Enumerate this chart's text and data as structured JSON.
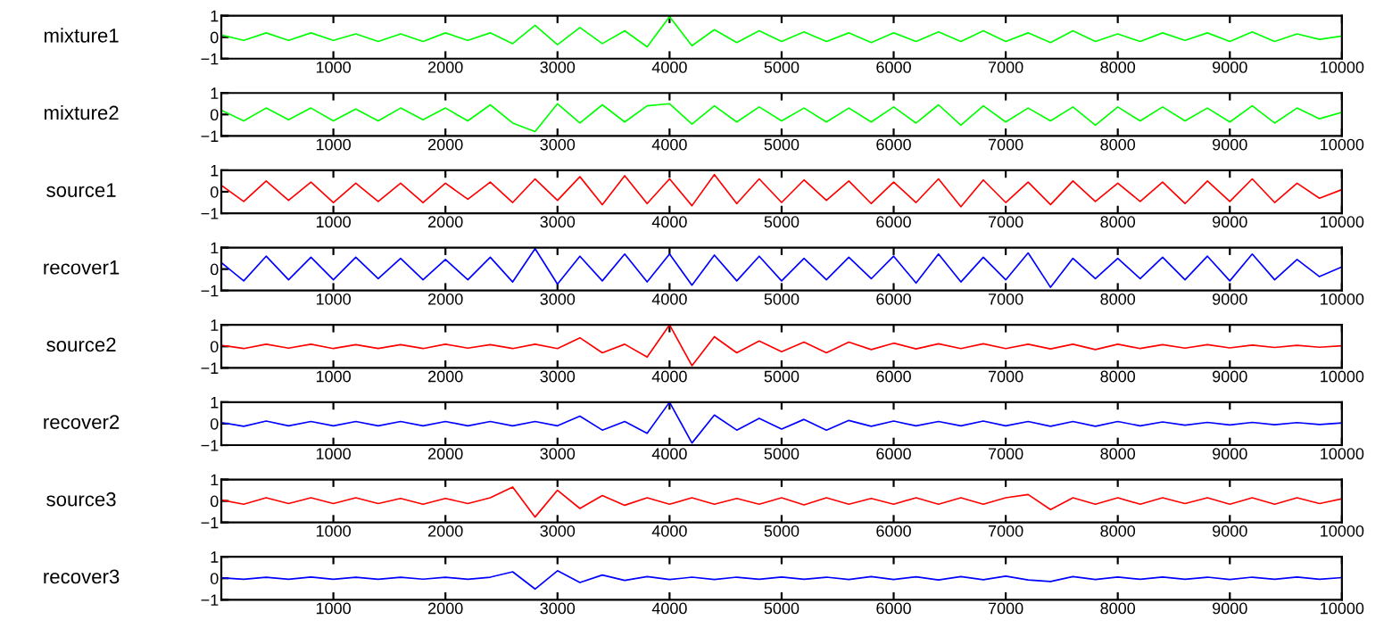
{
  "chart_data": [
    {
      "type": "line",
      "ylabel": "mixture1",
      "xlim": [
        0,
        10000
      ],
      "ylim": [
        -1,
        1
      ],
      "xticks": [
        1000,
        2000,
        3000,
        4000,
        5000,
        6000,
        7000,
        8000,
        9000,
        10000
      ],
      "yticks": [
        -1,
        0,
        1
      ],
      "x": [
        0,
        200,
        400,
        600,
        800,
        1000,
        1200,
        1400,
        1600,
        1800,
        2000,
        2200,
        2400,
        2600,
        2800,
        3000,
        3200,
        3400,
        3600,
        3800,
        4000,
        4200,
        4400,
        4600,
        4800,
        5000,
        5200,
        5400,
        5600,
        5800,
        6000,
        6200,
        6400,
        6600,
        6800,
        7000,
        7200,
        7400,
        7600,
        7800,
        8000,
        8200,
        8400,
        8600,
        8800,
        9000,
        9200,
        9400,
        9600,
        9800,
        10000
      ],
      "series": [
        {
          "color": "#00ff00",
          "values": [
            0.1,
            -0.15,
            0.2,
            -0.15,
            0.2,
            -0.15,
            0.15,
            -0.2,
            0.15,
            -0.2,
            0.2,
            -0.15,
            0.2,
            -0.3,
            0.55,
            -0.35,
            0.45,
            -0.3,
            0.3,
            -0.45,
            0.95,
            -0.4,
            0.35,
            -0.25,
            0.3,
            -0.2,
            0.25,
            -0.2,
            0.2,
            -0.25,
            0.2,
            -0.2,
            0.25,
            -0.2,
            0.3,
            -0.2,
            0.2,
            -0.25,
            0.3,
            -0.2,
            0.15,
            -0.2,
            0.2,
            -0.15,
            0.2,
            -0.2,
            0.25,
            -0.2,
            0.15,
            -0.1,
            0.05
          ]
        }
      ]
    },
    {
      "type": "line",
      "ylabel": "mixture2",
      "xlim": [
        0,
        10000
      ],
      "ylim": [
        -1,
        1
      ],
      "xticks": [
        1000,
        2000,
        3000,
        4000,
        5000,
        6000,
        7000,
        8000,
        9000,
        10000
      ],
      "yticks": [
        -1,
        0,
        1
      ],
      "x": [
        0,
        200,
        400,
        600,
        800,
        1000,
        1200,
        1400,
        1600,
        1800,
        2000,
        2200,
        2400,
        2600,
        2800,
        3000,
        3200,
        3400,
        3600,
        3800,
        4000,
        4200,
        4400,
        4600,
        4800,
        5000,
        5200,
        5400,
        5600,
        5800,
        6000,
        6200,
        6400,
        6600,
        6800,
        7000,
        7200,
        7400,
        7600,
        7800,
        8000,
        8200,
        8400,
        8600,
        8800,
        9000,
        9200,
        9400,
        9600,
        9800,
        10000
      ],
      "series": [
        {
          "color": "#00ff00",
          "values": [
            0.2,
            -0.3,
            0.3,
            -0.25,
            0.3,
            -0.3,
            0.25,
            -0.3,
            0.3,
            -0.25,
            0.3,
            -0.3,
            0.45,
            -0.4,
            -0.8,
            0.5,
            -0.4,
            0.45,
            -0.35,
            0.4,
            0.5,
            -0.45,
            0.4,
            -0.35,
            0.35,
            -0.3,
            0.3,
            -0.35,
            0.3,
            -0.35,
            0.35,
            -0.4,
            0.45,
            -0.5,
            0.4,
            -0.35,
            0.3,
            -0.3,
            0.35,
            -0.5,
            0.35,
            -0.3,
            0.35,
            -0.3,
            0.3,
            -0.35,
            0.4,
            -0.4,
            0.3,
            -0.2,
            0.1
          ]
        }
      ]
    },
    {
      "type": "line",
      "ylabel": "source1",
      "xlim": [
        0,
        10000
      ],
      "ylim": [
        -1,
        1
      ],
      "xticks": [
        1000,
        2000,
        3000,
        4000,
        5000,
        6000,
        7000,
        8000,
        9000,
        10000
      ],
      "yticks": [
        -1,
        0,
        1
      ],
      "x": [
        0,
        200,
        400,
        600,
        800,
        1000,
        1200,
        1400,
        1600,
        1800,
        2000,
        2200,
        2400,
        2600,
        2800,
        3000,
        3200,
        3400,
        3600,
        3800,
        4000,
        4200,
        4400,
        4600,
        4800,
        5000,
        5200,
        5400,
        5600,
        5800,
        6000,
        6200,
        6400,
        6600,
        6800,
        7000,
        7200,
        7400,
        7600,
        7800,
        8000,
        8200,
        8400,
        8600,
        8800,
        9000,
        9200,
        9400,
        9600,
        9800,
        10000
      ],
      "series": [
        {
          "color": "#ff0000",
          "values": [
            0.3,
            -0.45,
            0.5,
            -0.4,
            0.45,
            -0.5,
            0.4,
            -0.45,
            0.4,
            -0.5,
            0.4,
            -0.35,
            0.45,
            -0.5,
            0.6,
            -0.4,
            0.7,
            -0.6,
            0.75,
            -0.55,
            0.6,
            -0.65,
            0.8,
            -0.55,
            0.6,
            -0.5,
            0.55,
            -0.4,
            0.5,
            -0.55,
            0.45,
            -0.5,
            0.6,
            -0.7,
            0.55,
            -0.5,
            0.45,
            -0.6,
            0.5,
            -0.45,
            0.4,
            -0.45,
            0.45,
            -0.55,
            0.5,
            -0.45,
            0.6,
            -0.5,
            0.4,
            -0.3,
            0.1
          ]
        }
      ]
    },
    {
      "type": "line",
      "ylabel": "recover1",
      "xlim": [
        0,
        10000
      ],
      "ylim": [
        -1,
        1
      ],
      "xticks": [
        1000,
        2000,
        3000,
        4000,
        5000,
        6000,
        7000,
        8000,
        9000,
        10000
      ],
      "yticks": [
        -1,
        0,
        1
      ],
      "x": [
        0,
        200,
        400,
        600,
        800,
        1000,
        1200,
        1400,
        1600,
        1800,
        2000,
        2200,
        2400,
        2600,
        2800,
        3000,
        3200,
        3400,
        3600,
        3800,
        4000,
        4200,
        4400,
        4600,
        4800,
        5000,
        5200,
        5400,
        5600,
        5800,
        6000,
        6200,
        6400,
        6600,
        6800,
        7000,
        7200,
        7400,
        7600,
        7800,
        8000,
        8200,
        8400,
        8600,
        8800,
        9000,
        9200,
        9400,
        9600,
        9800,
        10000
      ],
      "series": [
        {
          "color": "#0000ff",
          "values": [
            0.3,
            -0.55,
            0.6,
            -0.5,
            0.55,
            -0.5,
            0.55,
            -0.45,
            0.5,
            -0.5,
            0.45,
            -0.5,
            0.55,
            -0.6,
            0.95,
            -0.7,
            0.6,
            -0.55,
            0.7,
            -0.6,
            0.7,
            -0.75,
            0.65,
            -0.55,
            0.6,
            -0.55,
            0.5,
            -0.5,
            0.55,
            -0.45,
            0.6,
            -0.65,
            0.7,
            -0.6,
            0.55,
            -0.5,
            0.75,
            -0.85,
            0.5,
            -0.45,
            0.5,
            -0.45,
            0.55,
            -0.5,
            0.6,
            -0.55,
            0.7,
            -0.5,
            0.45,
            -0.35,
            0.1
          ]
        }
      ]
    },
    {
      "type": "line",
      "ylabel": "source2",
      "xlim": [
        0,
        10000
      ],
      "ylim": [
        -1,
        1
      ],
      "xticks": [
        1000,
        2000,
        3000,
        4000,
        5000,
        6000,
        7000,
        8000,
        9000,
        10000
      ],
      "yticks": [
        -1,
        0,
        1
      ],
      "x": [
        0,
        200,
        400,
        600,
        800,
        1000,
        1200,
        1400,
        1600,
        1800,
        2000,
        2200,
        2400,
        2600,
        2800,
        3000,
        3200,
        3400,
        3600,
        3800,
        4000,
        4200,
        4400,
        4600,
        4800,
        5000,
        5200,
        5400,
        5600,
        5800,
        6000,
        6200,
        6400,
        6600,
        6800,
        7000,
        7200,
        7400,
        7600,
        7800,
        8000,
        8200,
        8400,
        8600,
        8800,
        9000,
        9200,
        9400,
        9600,
        9800,
        10000
      ],
      "series": [
        {
          "color": "#ff0000",
          "values": [
            0.05,
            -0.1,
            0.1,
            -0.08,
            0.1,
            -0.1,
            0.08,
            -0.1,
            0.08,
            -0.1,
            0.1,
            -0.08,
            0.08,
            -0.1,
            0.1,
            -0.1,
            0.4,
            -0.3,
            0.1,
            -0.5,
            1.0,
            -0.9,
            0.45,
            -0.3,
            0.25,
            -0.25,
            0.2,
            -0.3,
            0.2,
            -0.15,
            0.15,
            -0.12,
            0.12,
            -0.1,
            0.12,
            -0.1,
            0.1,
            -0.12,
            0.1,
            -0.15,
            0.1,
            -0.1,
            0.08,
            -0.08,
            0.08,
            -0.07,
            0.06,
            -0.05,
            0.05,
            -0.04,
            0.03
          ]
        }
      ]
    },
    {
      "type": "line",
      "ylabel": "recover2",
      "xlim": [
        0,
        10000
      ],
      "ylim": [
        -1,
        1
      ],
      "xticks": [
        1000,
        2000,
        3000,
        4000,
        5000,
        6000,
        7000,
        8000,
        9000,
        10000
      ],
      "yticks": [
        -1,
        0,
        1
      ],
      "x": [
        0,
        200,
        400,
        600,
        800,
        1000,
        1200,
        1400,
        1600,
        1800,
        2000,
        2200,
        2400,
        2600,
        2800,
        3000,
        3200,
        3400,
        3600,
        3800,
        4000,
        4200,
        4400,
        4600,
        4800,
        5000,
        5200,
        5400,
        5600,
        5800,
        6000,
        6200,
        6400,
        6600,
        6800,
        7000,
        7200,
        7400,
        7600,
        7800,
        8000,
        8200,
        8400,
        8600,
        8800,
        9000,
        9200,
        9400,
        9600,
        9800,
        10000
      ],
      "series": [
        {
          "color": "#0000ff",
          "values": [
            0.05,
            -0.12,
            0.12,
            -0.1,
            0.1,
            -0.1,
            0.1,
            -0.1,
            0.1,
            -0.1,
            0.1,
            -0.1,
            0.1,
            -0.1,
            0.1,
            -0.1,
            0.35,
            -0.3,
            0.1,
            -0.45,
            1.0,
            -0.9,
            0.4,
            -0.3,
            0.25,
            -0.25,
            0.2,
            -0.3,
            0.15,
            -0.12,
            0.12,
            -0.1,
            0.1,
            -0.1,
            0.12,
            -0.1,
            0.1,
            -0.12,
            0.1,
            -0.12,
            0.1,
            -0.1,
            0.08,
            -0.07,
            0.06,
            -0.06,
            0.06,
            -0.05,
            0.05,
            -0.04,
            0.03
          ]
        }
      ]
    },
    {
      "type": "line",
      "ylabel": "source3",
      "xlim": [
        0,
        10000
      ],
      "ylim": [
        -1,
        1
      ],
      "xticks": [
        1000,
        2000,
        3000,
        4000,
        5000,
        6000,
        7000,
        8000,
        9000,
        10000
      ],
      "yticks": [
        -1,
        0,
        1
      ],
      "x": [
        0,
        200,
        400,
        600,
        800,
        1000,
        1200,
        1400,
        1600,
        1800,
        2000,
        2200,
        2400,
        2600,
        2800,
        3000,
        3200,
        3400,
        3600,
        3800,
        4000,
        4200,
        4400,
        4600,
        4800,
        5000,
        5200,
        5400,
        5600,
        5800,
        6000,
        6200,
        6400,
        6600,
        6800,
        7000,
        7200,
        7400,
        7600,
        7800,
        8000,
        8200,
        8400,
        8600,
        8800,
        9000,
        9200,
        9400,
        9600,
        9800,
        10000
      ],
      "series": [
        {
          "color": "#ff0000",
          "values": [
            0.05,
            -0.15,
            0.15,
            -0.12,
            0.15,
            -0.12,
            0.15,
            -0.12,
            0.12,
            -0.15,
            0.12,
            -0.12,
            0.15,
            0.65,
            -0.75,
            0.5,
            -0.35,
            0.25,
            -0.2,
            0.15,
            -0.15,
            0.15,
            -0.15,
            0.12,
            -0.15,
            0.15,
            -0.18,
            0.15,
            -0.15,
            0.12,
            -0.15,
            0.15,
            -0.15,
            0.15,
            -0.15,
            0.15,
            0.3,
            -0.4,
            0.15,
            -0.15,
            0.15,
            -0.15,
            0.15,
            -0.12,
            0.15,
            -0.15,
            0.15,
            -0.15,
            0.15,
            -0.12,
            0.1
          ]
        }
      ]
    },
    {
      "type": "line",
      "ylabel": "recover3",
      "xlim": [
        0,
        10000
      ],
      "ylim": [
        -1,
        1
      ],
      "xticks": [
        1000,
        2000,
        3000,
        4000,
        5000,
        6000,
        7000,
        8000,
        9000,
        10000
      ],
      "yticks": [
        -1,
        0,
        1
      ],
      "x": [
        0,
        200,
        400,
        600,
        800,
        1000,
        1200,
        1400,
        1600,
        1800,
        2000,
        2200,
        2400,
        2600,
        2800,
        3000,
        3200,
        3400,
        3600,
        3800,
        4000,
        4200,
        4400,
        4600,
        4800,
        5000,
        5200,
        5400,
        5600,
        5800,
        6000,
        6200,
        6400,
        6600,
        6800,
        7000,
        7200,
        7400,
        7600,
        7800,
        8000,
        8200,
        8400,
        8600,
        8800,
        9000,
        9200,
        9400,
        9600,
        9800,
        10000
      ],
      "series": [
        {
          "color": "#0000ff",
          "values": [
            0.02,
            -0.05,
            0.05,
            -0.05,
            0.06,
            -0.05,
            0.05,
            -0.05,
            0.05,
            -0.04,
            0.05,
            -0.05,
            0.05,
            0.3,
            -0.5,
            0.35,
            -0.2,
            0.15,
            -0.1,
            0.08,
            -0.06,
            0.05,
            -0.06,
            0.05,
            -0.05,
            0.06,
            -0.05,
            0.05,
            -0.06,
            0.08,
            -0.06,
            0.07,
            -0.08,
            0.08,
            -0.07,
            0.1,
            -0.08,
            -0.15,
            0.08,
            -0.06,
            0.06,
            -0.05,
            0.06,
            -0.05,
            0.05,
            -0.06,
            0.05,
            -0.05,
            0.06,
            -0.05,
            0.03
          ]
        }
      ]
    }
  ]
}
